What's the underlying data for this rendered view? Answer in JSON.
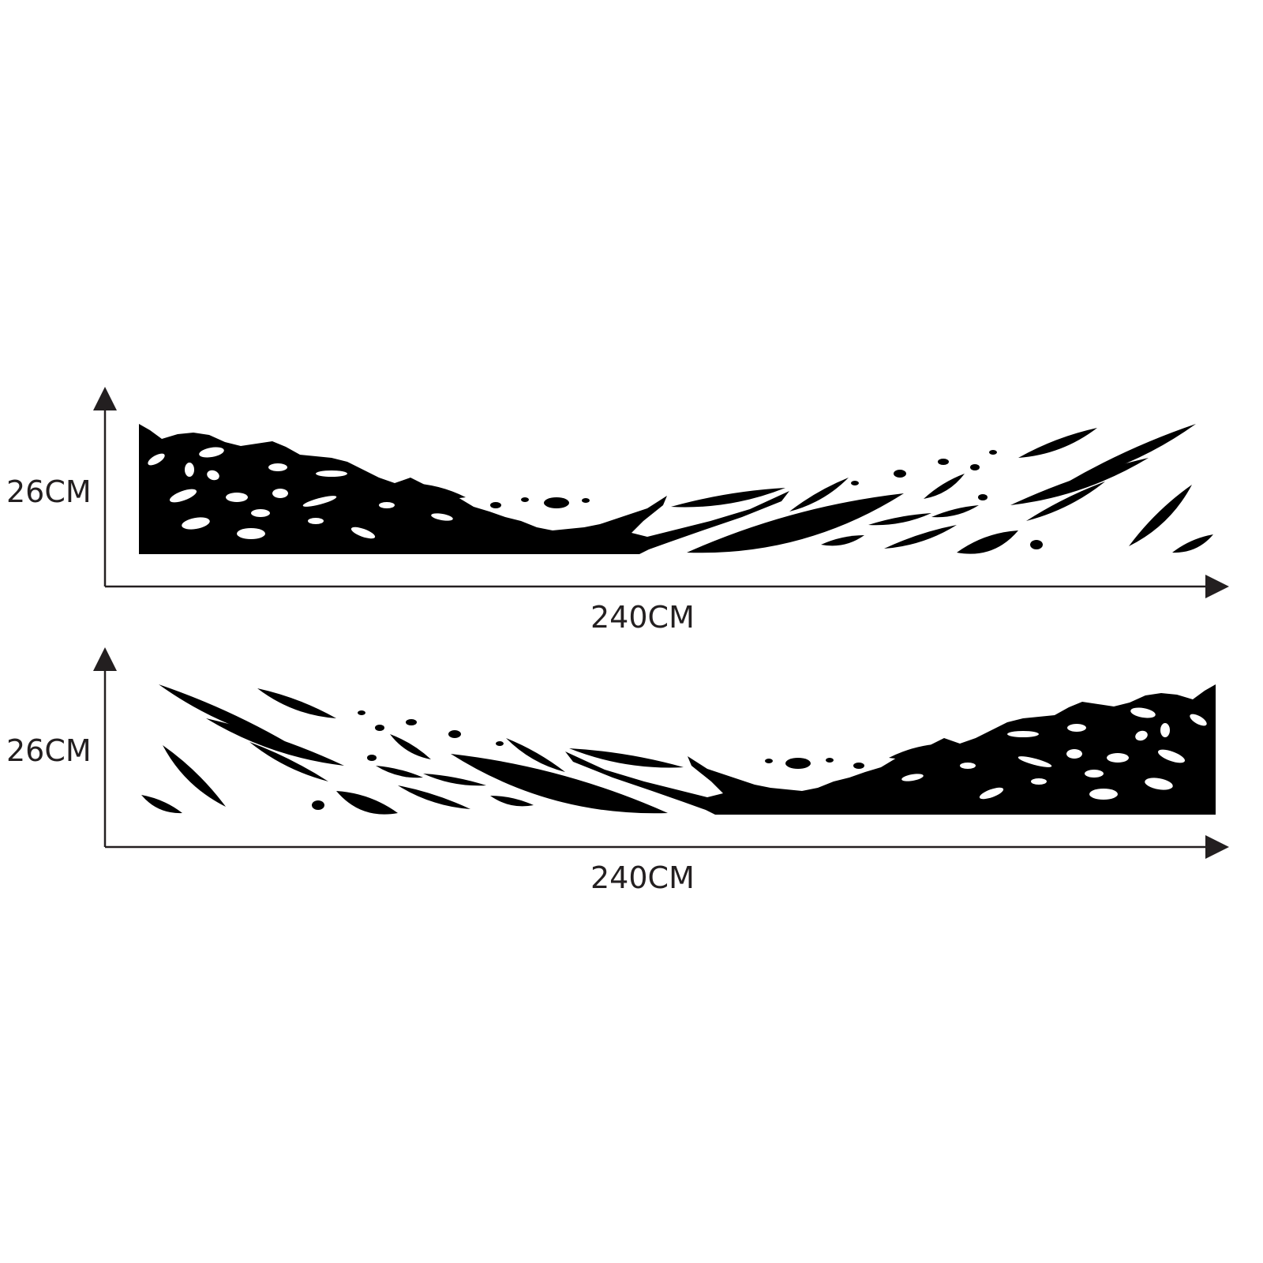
{
  "colors": {
    "decal": "#000000",
    "axis": "#231f20",
    "background": "#ffffff"
  },
  "diagrams": [
    {
      "height_label": "26CM",
      "width_label": "240CM",
      "orientation": "solid-left"
    },
    {
      "height_label": "26CM",
      "width_label": "240CM",
      "orientation": "solid-right"
    }
  ]
}
